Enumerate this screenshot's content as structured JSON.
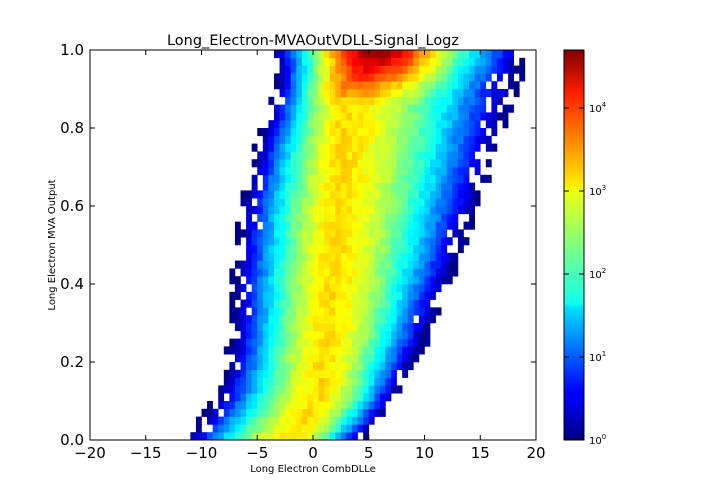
{
  "chart_data": {
    "type": "heatmap",
    "title": "Long_Electron-MVAOutVDLL-Signal_Logz",
    "xlabel": "Long Electron CombDLLe",
    "ylabel": "Long Electron MVA Output",
    "xlim": [
      -20,
      20
    ],
    "ylim": [
      0.0,
      1.0
    ],
    "x_ticks": [
      "−20",
      "−15",
      "−10",
      "−5",
      "0",
      "5",
      "10",
      "15",
      "20"
    ],
    "y_ticks": [
      "0.0",
      "0.2",
      "0.4",
      "0.6",
      "0.8",
      "1.0"
    ],
    "colorbar": {
      "scale": "log",
      "range": [
        1,
        50000
      ],
      "colormap": "jet",
      "ticks": [
        {
          "base": "10",
          "exp": "0"
        },
        {
          "base": "10",
          "exp": "1"
        },
        {
          "base": "10",
          "exp": "2"
        },
        {
          "base": "10",
          "exp": "3"
        },
        {
          "base": "10",
          "exp": "4"
        }
      ]
    },
    "bins": {
      "x_edges_range": [
        -20,
        20
      ],
      "x_bin_width": 0.5,
      "y_bin_width": 0.02
    },
    "populated_ridge": {
      "description_values": "approximate bin-count density estimated from image",
      "ridge_x_at_y": [
        {
          "y": 0.0,
          "x_center": -2
        },
        {
          "y": 0.1,
          "x_center": 0.5
        },
        {
          "y": 0.3,
          "x_center": 1.5
        },
        {
          "y": 0.5,
          "x_center": 2.0
        },
        {
          "y": 0.7,
          "x_center": 2.5
        },
        {
          "y": 0.9,
          "x_center": 3.0
        },
        {
          "y": 0.98,
          "x_center": 6.0
        }
      ],
      "peak_count": 50000,
      "peak_location": {
        "x": 5,
        "y": 0.98
      }
    }
  }
}
